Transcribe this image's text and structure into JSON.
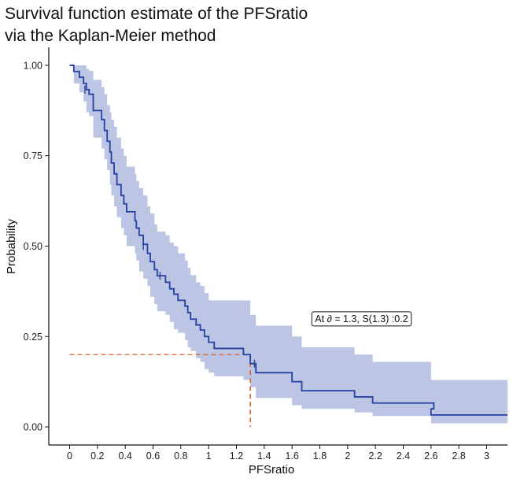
{
  "chart_data": {
    "type": "line",
    "title_line1": "Survival function estimate of the PFSratio",
    "title_line2": "via the Kaplan-Meier method",
    "xlabel": "PFSratio",
    "ylabel": "Probability",
    "xlim": [
      -0.15,
      3.15
    ],
    "ylim": [
      -0.05,
      1.05
    ],
    "x_ticks": [
      0,
      0.2,
      0.4,
      0.6,
      0.8,
      1,
      1.2,
      1.4,
      1.6,
      1.8,
      2,
      2.2,
      2.4,
      2.6,
      2.8,
      3
    ],
    "x_tick_labels": [
      "0",
      "0.2",
      "0.4",
      "0.6",
      "0.8",
      "1",
      "1.2",
      "1.4",
      "1.6",
      "1.8",
      "2",
      "2.2",
      "2.4",
      "2.6",
      "2.8",
      "3"
    ],
    "y_ticks": [
      0,
      0.25,
      0.5,
      0.75,
      1
    ],
    "y_tick_labels": [
      "0.00",
      "0.25",
      "0.50",
      "0.75",
      "1.00"
    ],
    "grid": false,
    "colors": {
      "curve": "#2540a0",
      "band": "#bcc6e4",
      "reference": "#e0622e"
    },
    "series": [
      {
        "type": "step",
        "points": [
          [
            0,
            1.0
          ],
          [
            0.03,
            0.983
          ],
          [
            0.07,
            0.967
          ],
          [
            0.1,
            0.95
          ],
          [
            0.12,
            0.933
          ],
          [
            0.14,
            0.92
          ],
          [
            0.17,
            0.875
          ],
          [
            0.21,
            0.875
          ],
          [
            0.23,
            0.85
          ],
          [
            0.25,
            0.82
          ],
          [
            0.27,
            0.79
          ],
          [
            0.29,
            0.76
          ],
          [
            0.3,
            0.73
          ],
          [
            0.32,
            0.7
          ],
          [
            0.34,
            0.67
          ],
          [
            0.37,
            0.64
          ],
          [
            0.39,
            0.617
          ],
          [
            0.41,
            0.595
          ],
          [
            0.47,
            0.57
          ],
          [
            0.48,
            0.55
          ],
          [
            0.5,
            0.53
          ],
          [
            0.53,
            0.505
          ],
          [
            0.56,
            0.48
          ],
          [
            0.58,
            0.457
          ],
          [
            0.61,
            0.435
          ],
          [
            0.63,
            0.418
          ],
          [
            0.69,
            0.4
          ],
          [
            0.72,
            0.382
          ],
          [
            0.75,
            0.367
          ],
          [
            0.78,
            0.35
          ],
          [
            0.83,
            0.334
          ],
          [
            0.85,
            0.316
          ],
          [
            0.87,
            0.298
          ],
          [
            0.91,
            0.282
          ],
          [
            0.94,
            0.268
          ],
          [
            0.97,
            0.25
          ],
          [
            1.0,
            0.234
          ],
          [
            1.04,
            0.217
          ],
          [
            1.25,
            0.2
          ],
          [
            1.3,
            0.175
          ],
          [
            1.34,
            0.15
          ],
          [
            1.6,
            0.125
          ],
          [
            1.67,
            0.1
          ],
          [
            2.05,
            0.083
          ],
          [
            2.18,
            0.066
          ],
          [
            2.62,
            0.05
          ],
          [
            2.6,
            0.033
          ],
          [
            3.15,
            0.033
          ]
        ]
      }
    ],
    "censor_marks": [
      [
        0.11,
        0.933
      ],
      [
        0.53,
        0.5
      ],
      [
        0.65,
        0.418
      ],
      [
        1.33,
        0.175
      ]
    ],
    "confidence_band": {
      "upper": [
        [
          0,
          1.0
        ],
        [
          0.03,
          1.0
        ],
        [
          0.07,
          1.0
        ],
        [
          0.1,
          1.0
        ],
        [
          0.12,
          0.99
        ],
        [
          0.14,
          0.985
        ],
        [
          0.17,
          0.96
        ],
        [
          0.21,
          0.96
        ],
        [
          0.23,
          0.94
        ],
        [
          0.25,
          0.92
        ],
        [
          0.27,
          0.89
        ],
        [
          0.29,
          0.87
        ],
        [
          0.3,
          0.85
        ],
        [
          0.32,
          0.83
        ],
        [
          0.34,
          0.8
        ],
        [
          0.37,
          0.77
        ],
        [
          0.39,
          0.75
        ],
        [
          0.41,
          0.72
        ],
        [
          0.47,
          0.7
        ],
        [
          0.48,
          0.68
        ],
        [
          0.5,
          0.66
        ],
        [
          0.53,
          0.64
        ],
        [
          0.56,
          0.61
        ],
        [
          0.58,
          0.59
        ],
        [
          0.61,
          0.56
        ],
        [
          0.63,
          0.54
        ],
        [
          0.69,
          0.53
        ],
        [
          0.72,
          0.51
        ],
        [
          0.75,
          0.5
        ],
        [
          0.78,
          0.48
        ],
        [
          0.83,
          0.46
        ],
        [
          0.85,
          0.44
        ],
        [
          0.87,
          0.42
        ],
        [
          0.91,
          0.4
        ],
        [
          0.94,
          0.39
        ],
        [
          0.97,
          0.37
        ],
        [
          1.0,
          0.35
        ],
        [
          1.04,
          0.35
        ],
        [
          1.25,
          0.35
        ],
        [
          1.3,
          0.31
        ],
        [
          1.34,
          0.28
        ],
        [
          1.6,
          0.25
        ],
        [
          1.67,
          0.22
        ],
        [
          2.05,
          0.2
        ],
        [
          2.18,
          0.18
        ],
        [
          2.6,
          0.13
        ],
        [
          3.15,
          0.13
        ]
      ],
      "lower": [
        [
          0,
          1.0
        ],
        [
          0.03,
          0.95
        ],
        [
          0.07,
          0.925
        ],
        [
          0.1,
          0.9
        ],
        [
          0.12,
          0.87
        ],
        [
          0.14,
          0.86
        ],
        [
          0.17,
          0.8
        ],
        [
          0.21,
          0.8
        ],
        [
          0.23,
          0.77
        ],
        [
          0.25,
          0.74
        ],
        [
          0.27,
          0.71
        ],
        [
          0.29,
          0.67
        ],
        [
          0.3,
          0.64
        ],
        [
          0.32,
          0.61
        ],
        [
          0.34,
          0.58
        ],
        [
          0.37,
          0.55
        ],
        [
          0.39,
          0.53
        ],
        [
          0.41,
          0.5
        ],
        [
          0.47,
          0.48
        ],
        [
          0.48,
          0.46
        ],
        [
          0.5,
          0.43
        ],
        [
          0.53,
          0.41
        ],
        [
          0.56,
          0.39
        ],
        [
          0.58,
          0.36
        ],
        [
          0.61,
          0.34
        ],
        [
          0.63,
          0.32
        ],
        [
          0.69,
          0.31
        ],
        [
          0.72,
          0.29
        ],
        [
          0.75,
          0.27
        ],
        [
          0.78,
          0.26
        ],
        [
          0.83,
          0.24
        ],
        [
          0.85,
          0.22
        ],
        [
          0.87,
          0.21
        ],
        [
          0.91,
          0.19
        ],
        [
          0.94,
          0.18
        ],
        [
          0.97,
          0.16
        ],
        [
          1.0,
          0.15
        ],
        [
          1.04,
          0.14
        ],
        [
          1.25,
          0.13
        ],
        [
          1.3,
          0.11
        ],
        [
          1.34,
          0.08
        ],
        [
          1.6,
          0.06
        ],
        [
          1.67,
          0.05
        ],
        [
          2.05,
          0.04
        ],
        [
          2.18,
          0.03
        ],
        [
          2.6,
          0.01
        ],
        [
          3.15,
          0.01
        ]
      ]
    },
    "reference_lines": {
      "x": 1.3,
      "y": 0.2,
      "style": "dashed"
    },
    "annotation": {
      "text": "At ∂ = 1.3, S(1.3) :0.2",
      "x": 2.1,
      "y": 0.3
    }
  }
}
